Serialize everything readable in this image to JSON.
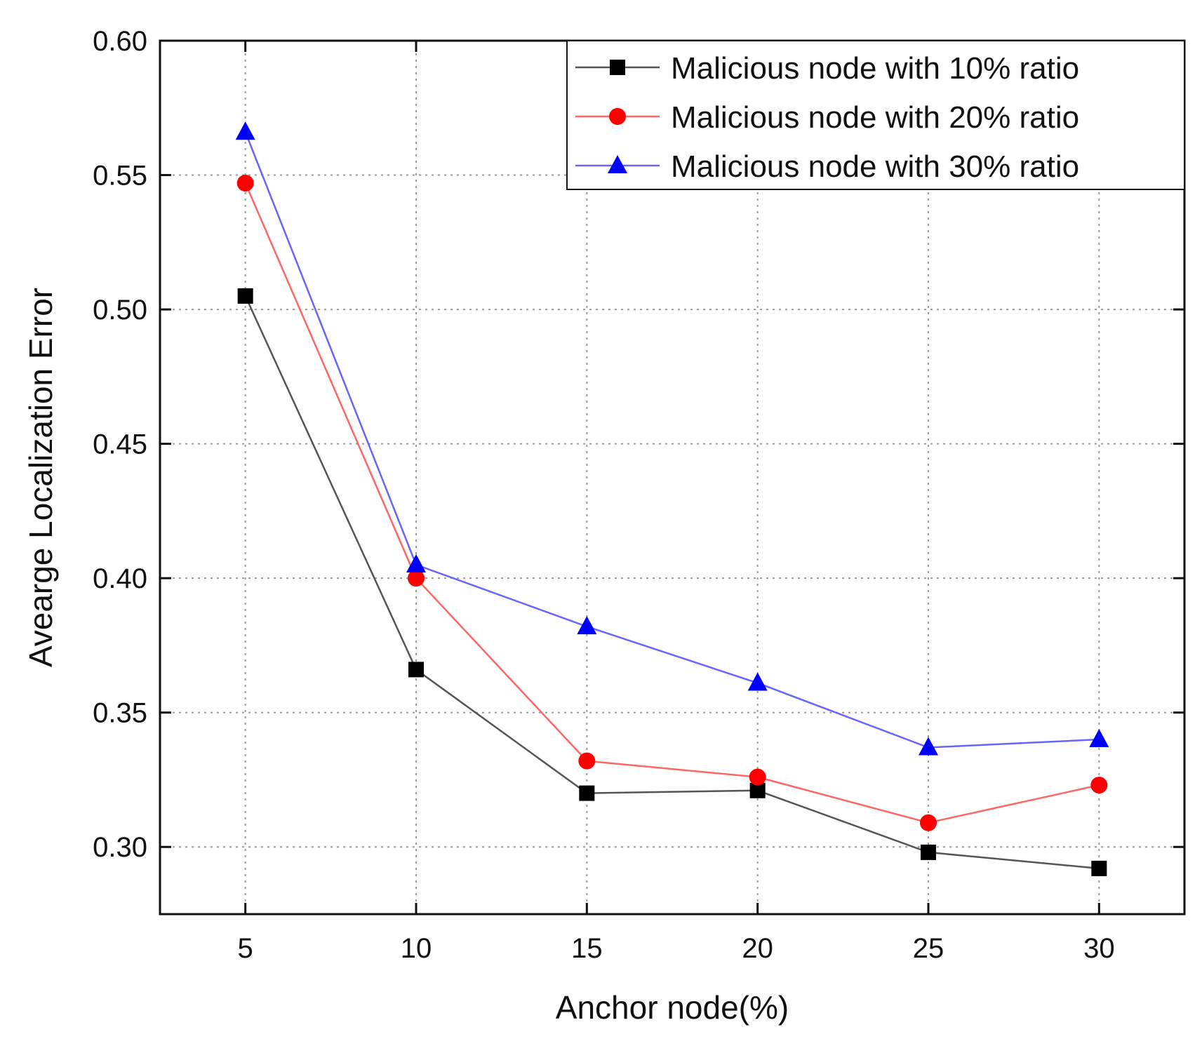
{
  "chart_data": {
    "type": "line",
    "title": "",
    "xlabel": "Anchor node(%)",
    "ylabel": "Avearge Localization Error",
    "x": [
      5,
      10,
      15,
      20,
      25,
      30
    ],
    "x_tick_labels": [
      "5",
      "10",
      "15",
      "20",
      "25",
      "30"
    ],
    "xlim": [
      2.5,
      32.5
    ],
    "ylim": [
      0.275,
      0.6
    ],
    "y_ticks": [
      0.3,
      0.35,
      0.4,
      0.45,
      0.5,
      0.55,
      0.6
    ],
    "y_tick_labels": [
      "0.30",
      "0.35",
      "0.40",
      "0.45",
      "0.50",
      "0.55",
      "0.60"
    ],
    "grid": true,
    "legend_position": "top-right",
    "series": [
      {
        "name": "Malicious node with 10% ratio",
        "color": "#000000",
        "line_color": "#555555",
        "marker": "square",
        "values": [
          0.505,
          0.366,
          0.32,
          0.321,
          0.298,
          0.292
        ]
      },
      {
        "name": "Malicious node with 20% ratio",
        "color": "#ff0000",
        "line_color": "#ff6666",
        "marker": "circle",
        "values": [
          0.547,
          0.4,
          0.332,
          0.326,
          0.309,
          0.323
        ]
      },
      {
        "name": "Malicious node with 30% ratio",
        "color": "#0000ff",
        "line_color": "#6666ff",
        "marker": "triangle",
        "values": [
          0.566,
          0.405,
          0.382,
          0.361,
          0.337,
          0.34
        ]
      }
    ]
  }
}
